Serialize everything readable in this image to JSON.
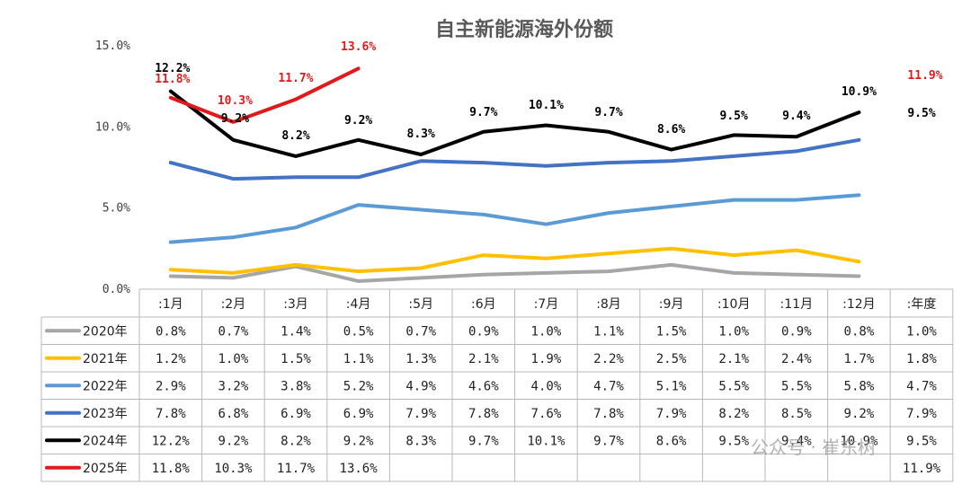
{
  "watermark": "公众号 · 崔东树",
  "chart_data": {
    "type": "line",
    "title": "自主新能源海外份额",
    "categories": [
      ":1月",
      ":2月",
      ":3月",
      ":4月",
      ":5月",
      ":6月",
      ":7月",
      ":8月",
      ":9月",
      ":10月",
      ":11月",
      ":12月",
      ":年度"
    ],
    "ylim": [
      0,
      15
    ],
    "yticks": [
      "0.0%",
      "5.0%",
      "10.0%",
      "15.0%"
    ],
    "ytick_values": [
      0,
      5,
      10,
      15
    ],
    "grid": false,
    "legend_placement": "data-table-left",
    "series": [
      {
        "name": "2020年",
        "color": "#a6a6a6",
        "values": [
          0.8,
          0.7,
          1.4,
          0.5,
          0.7,
          0.9,
          1.0,
          1.1,
          1.5,
          1.0,
          0.9,
          0.8,
          1.0
        ],
        "labels": [
          "0.8%",
          "0.7%",
          "1.4%",
          "0.5%",
          "0.7%",
          "0.9%",
          "1.0%",
          "1.1%",
          "1.5%",
          "1.0%",
          "0.9%",
          "0.8%",
          "1.0%"
        ],
        "show_labels": false
      },
      {
        "name": "2021年",
        "color": "#ffc000",
        "values": [
          1.2,
          1.0,
          1.5,
          1.1,
          1.3,
          2.1,
          1.9,
          2.2,
          2.5,
          2.1,
          2.4,
          1.7,
          1.8
        ],
        "labels": [
          "1.2%",
          "1.0%",
          "1.5%",
          "1.1%",
          "1.3%",
          "2.1%",
          "1.9%",
          "2.2%",
          "2.5%",
          "2.1%",
          "2.4%",
          "1.7%",
          "1.8%"
        ],
        "show_labels": false
      },
      {
        "name": "2022年",
        "color": "#5b9bd5",
        "values": [
          2.9,
          3.2,
          3.8,
          5.2,
          4.9,
          4.6,
          4.0,
          4.7,
          5.1,
          5.5,
          5.5,
          5.8,
          4.7
        ],
        "labels": [
          "2.9%",
          "3.2%",
          "3.8%",
          "5.2%",
          "4.9%",
          "4.6%",
          "4.0%",
          "4.7%",
          "5.1%",
          "5.5%",
          "5.5%",
          "5.8%",
          "4.7%"
        ],
        "show_labels": false
      },
      {
        "name": "2023年",
        "color": "#4472c4",
        "values": [
          7.8,
          6.8,
          6.9,
          6.9,
          7.9,
          7.8,
          7.6,
          7.8,
          7.9,
          8.2,
          8.5,
          9.2,
          7.9
        ],
        "labels": [
          "7.8%",
          "6.8%",
          "6.9%",
          "6.9%",
          "7.9%",
          "7.8%",
          "7.6%",
          "7.8%",
          "7.9%",
          "8.2%",
          "8.5%",
          "9.2%",
          "7.9%"
        ],
        "show_labels": false
      },
      {
        "name": "2024年",
        "color": "#000000",
        "values": [
          12.2,
          9.2,
          8.2,
          9.2,
          8.3,
          9.7,
          10.1,
          9.7,
          8.6,
          9.5,
          9.4,
          10.9,
          9.5
        ],
        "labels": [
          "12.2%",
          "9.2%",
          "8.2%",
          "9.2%",
          "8.3%",
          "9.7%",
          "10.1%",
          "9.7%",
          "8.6%",
          "9.5%",
          "9.4%",
          "10.9%",
          "9.5%"
        ],
        "show_labels": true
      },
      {
        "name": "2025年",
        "color": "#e01a1a",
        "values": [
          11.8,
          10.3,
          11.7,
          13.6,
          null,
          null,
          null,
          null,
          null,
          null,
          null,
          null,
          11.9
        ],
        "labels": [
          "11.8%",
          "10.3%",
          "11.7%",
          "13.6%",
          "",
          "",
          "",
          "",
          "",
          "",
          "",
          "",
          "11.9%"
        ],
        "show_labels": true,
        "line_points": 4
      }
    ]
  }
}
